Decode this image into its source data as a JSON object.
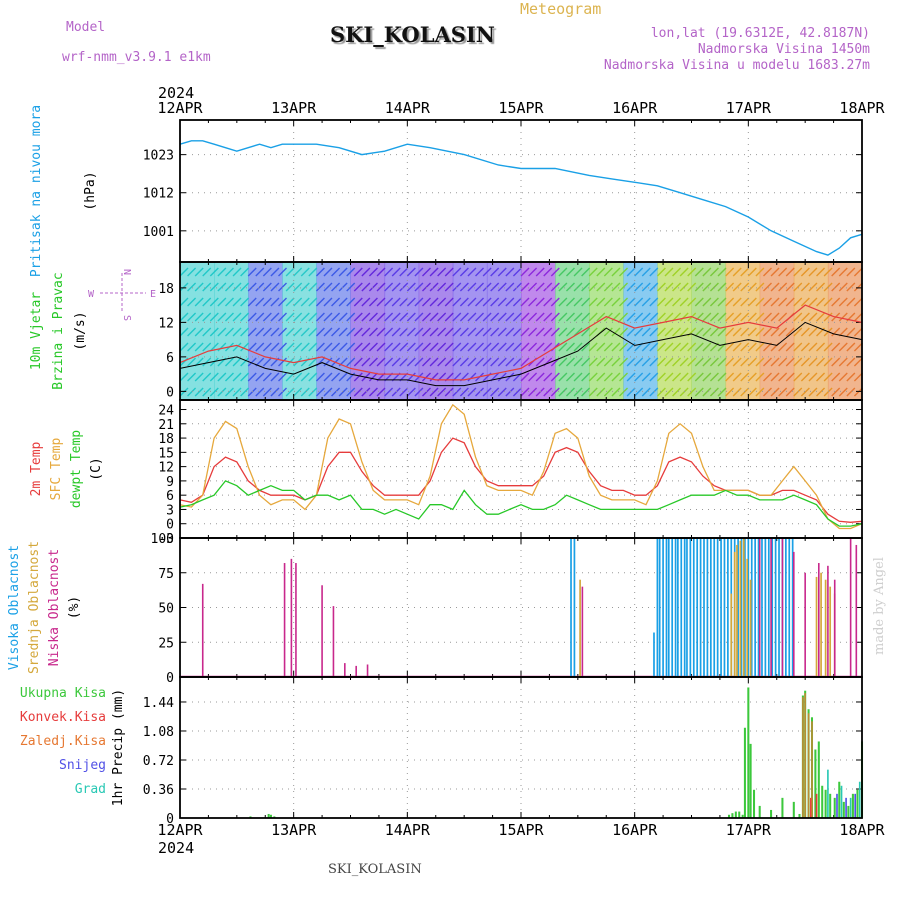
{
  "header": {
    "model_label": "Model",
    "model_name": "wrf-nmm_v3.9.1  e1km",
    "meteogram_label": "Meteogram",
    "station": "SKI_KOLASIN",
    "coords": "lon,lat (19.6312E, 42.8187N)",
    "altitude": "Nadmorska Visina 1450m",
    "model_altitude": "Nadmorska Visina u modelu 1683.27m",
    "footer_station": "SKI_KOLASIN",
    "credit": "made by Angel"
  },
  "colors": {
    "pressure": "#1aa0e6",
    "temp2m": "#e63c3c",
    "sfc": "#e6a83c",
    "dewpt": "#28c828",
    "high_cloud": "#1aa0e6",
    "mid_cloud": "#d4a83c",
    "low_cloud": "#c8288c",
    "precip_total": "#3cc83c",
    "precip_conv": "#e63c3c",
    "precip_strat": "#e67832",
    "snow": "#5050e6",
    "hail": "#28c8b4",
    "header_purple": "#b464c8",
    "header_gold": "#dcb450"
  },
  "chart_data": [
    {
      "panel": "pressure",
      "type": "line",
      "ylabel_lines": [
        "Pritisak na nivou mora",
        "(hPa)"
      ],
      "x_ticks": [
        "12APR",
        "13APR",
        "14APR",
        "15APR",
        "16APR",
        "17APR",
        "18APR"
      ],
      "x_year": "2024",
      "y_ticks": [
        1001,
        1012,
        1023
      ],
      "ylim": [
        992,
        1033
      ],
      "x": [
        0,
        0.1,
        0.2,
        0.3,
        0.4,
        0.5,
        0.6,
        0.7,
        0.8,
        0.9,
        1.0,
        1.2,
        1.4,
        1.6,
        1.8,
        2.0,
        2.2,
        2.5,
        2.8,
        3.0,
        3.3,
        3.6,
        3.8,
        4.0,
        4.2,
        4.4,
        4.6,
        4.8,
        5.0,
        5.2,
        5.4,
        5.6,
        5.7,
        5.8,
        5.9,
        6.0
      ],
      "values": [
        1026,
        1027,
        1027,
        1026,
        1025,
        1024,
        1025,
        1026,
        1025,
        1026,
        1026,
        1026,
        1025,
        1023,
        1024,
        1026,
        1025,
        1023,
        1020,
        1019,
        1019,
        1017,
        1016,
        1015,
        1014,
        1012,
        1010,
        1008,
        1005,
        1001,
        998,
        995,
        994,
        996,
        999,
        1000
      ]
    },
    {
      "panel": "wind",
      "type": "line",
      "ylabel_lines": [
        "10m Vjetar",
        "Brzina i Pravac",
        "(m/s)"
      ],
      "direction_key": [
        "N",
        "W",
        "E",
        "S"
      ],
      "y_ticks": [
        0,
        6,
        12,
        18
      ],
      "ylim": [
        -1.5,
        22.5
      ],
      "x": [
        0,
        0.25,
        0.5,
        0.75,
        1.0,
        1.25,
        1.5,
        1.75,
        2.0,
        2.25,
        2.5,
        2.75,
        3.0,
        3.25,
        3.5,
        3.75,
        4.0,
        4.25,
        4.5,
        4.75,
        5.0,
        5.25,
        5.5,
        5.75,
        6.0
      ],
      "values": [
        4,
        5,
        6,
        4,
        3,
        5,
        3,
        2,
        2,
        1,
        1,
        2,
        3,
        5,
        7,
        11,
        8,
        9,
        10,
        8,
        9,
        8,
        12,
        10,
        9
      ],
      "gust_values": [
        5,
        7,
        8,
        6,
        5,
        6,
        4,
        3,
        3,
        2,
        2,
        3,
        4,
        7,
        10,
        13,
        11,
        12,
        13,
        11,
        12,
        11,
        15,
        13,
        12
      ]
    },
    {
      "panel": "temperature",
      "type": "line",
      "ylabel_lines": [
        "2m Temp",
        "SFC Temp",
        "dewpt Temp",
        "(C)"
      ],
      "y_ticks": [
        -3,
        0,
        3,
        6,
        9,
        12,
        15,
        18,
        21,
        24
      ],
      "ylim": [
        -3,
        26
      ],
      "x": [
        0,
        0.1,
        0.2,
        0.3,
        0.4,
        0.5,
        0.6,
        0.7,
        0.8,
        0.9,
        1.0,
        1.1,
        1.2,
        1.3,
        1.4,
        1.5,
        1.6,
        1.7,
        1.8,
        1.9,
        2.0,
        2.1,
        2.2,
        2.3,
        2.4,
        2.5,
        2.6,
        2.7,
        2.8,
        2.9,
        3.0,
        3.1,
        3.2,
        3.3,
        3.4,
        3.5,
        3.6,
        3.7,
        3.8,
        3.9,
        4.0,
        4.1,
        4.2,
        4.3,
        4.4,
        4.5,
        4.6,
        4.7,
        4.8,
        4.9,
        5.0,
        5.1,
        5.2,
        5.3,
        5.4,
        5.5,
        5.6,
        5.7,
        5.8,
        5.9,
        6.0
      ],
      "series": [
        {
          "name": "2m Temp",
          "values": [
            5,
            4.5,
            6,
            12,
            14,
            13,
            9,
            7,
            6,
            6,
            6,
            5,
            6,
            12,
            15,
            15,
            11,
            8,
            6,
            6,
            6,
            6,
            9,
            15,
            18,
            17,
            12,
            9,
            8,
            8,
            8,
            8,
            10,
            15,
            16,
            15,
            11,
            8,
            7,
            7,
            6,
            6,
            8,
            13,
            14,
            13,
            10,
            8,
            7,
            7,
            7,
            6,
            6,
            7,
            7,
            6,
            5,
            2,
            0.5,
            0.3,
            0.5
          ]
        },
        {
          "name": "SFC Temp",
          "values": [
            4,
            3.5,
            6,
            18,
            21.5,
            20,
            12,
            6,
            4,
            5,
            5,
            3,
            6,
            18,
            22,
            21,
            13,
            7,
            5,
            5,
            5,
            4,
            10,
            21,
            25,
            23,
            14,
            8,
            7,
            7,
            7,
            6,
            11,
            19,
            20,
            18,
            10,
            6,
            5,
            5,
            5,
            4,
            9,
            19,
            21,
            19,
            12,
            7,
            7,
            7,
            7,
            6,
            6,
            9,
            12,
            9,
            6,
            1,
            -1,
            -1,
            0
          ]
        },
        {
          "name": "dewpt Temp",
          "values": [
            3.5,
            4,
            5,
            6,
            9,
            8,
            6,
            7,
            8,
            7,
            7,
            5,
            6,
            6,
            5,
            6,
            3,
            3,
            2,
            3,
            2,
            1,
            4,
            4,
            3,
            7,
            4,
            2,
            2,
            3,
            4,
            3,
            3,
            4,
            6,
            5,
            4,
            3,
            3,
            3,
            3,
            3,
            3,
            4,
            5,
            6,
            6,
            6,
            7,
            6,
            6,
            5,
            5,
            5,
            6,
            5,
            4,
            1,
            -0.5,
            -0.5,
            0
          ]
        }
      ]
    },
    {
      "panel": "clouds",
      "type": "bar",
      "ylabel_lines": [
        "Visoka Oblacnost",
        "Srednja Oblacnost",
        "Niska Oblacnost",
        "(%)"
      ],
      "y_ticks": [
        0,
        25,
        50,
        75,
        100
      ],
      "ylim": [
        0,
        100
      ],
      "bar_width_days": 0.015,
      "series": [
        {
          "name": "Visoka Oblacnost",
          "x": [
            3.44,
            3.47,
            4.17,
            4.2,
            4.22,
            4.25,
            4.28,
            4.3,
            4.33,
            4.36,
            4.38,
            4.41,
            4.44,
            4.46,
            4.49,
            4.52,
            4.55,
            4.58,
            4.61,
            4.64,
            4.67,
            4.7,
            4.73,
            4.76,
            4.79,
            4.82,
            4.85,
            4.88,
            4.91,
            4.94,
            4.97,
            5.0,
            5.03,
            5.06,
            5.09,
            5.12,
            5.15,
            5.18,
            5.21,
            5.24,
            5.27,
            5.3,
            5.33,
            5.36,
            5.39
          ],
          "values": [
            100,
            100,
            32,
            100,
            100,
            100,
            100,
            100,
            100,
            100,
            100,
            100,
            100,
            100,
            100,
            100,
            100,
            100,
            100,
            100,
            100,
            100,
            100,
            100,
            100,
            100,
            100,
            100,
            100,
            100,
            100,
            100,
            100,
            100,
            100,
            100,
            100,
            100,
            100,
            100,
            100,
            100,
            100,
            100,
            100
          ]
        },
        {
          "name": "Srednja Oblacnost",
          "x": [
            3.52,
            4.85,
            4.88,
            4.9,
            4.93,
            4.96,
            4.99,
            5.02,
            5.6,
            5.64,
            5.68,
            5.72,
            5.76
          ],
          "values": [
            70,
            60,
            90,
            95,
            98,
            100,
            85,
            70,
            72,
            75,
            70,
            65,
            60
          ]
        },
        {
          "name": "Niska Oblacnost",
          "x": [
            0.2,
            0.92,
            0.98,
            1.02,
            1.25,
            1.35,
            1.45,
            1.55,
            1.65,
            3.54,
            5.1,
            5.2,
            5.3,
            5.4,
            5.5,
            5.62,
            5.7,
            5.76,
            5.9,
            5.95
          ],
          "values": [
            67,
            82,
            85,
            82,
            66,
            51,
            10,
            8,
            9,
            65,
            100,
            100,
            100,
            90,
            75,
            82,
            80,
            70,
            100,
            95
          ]
        }
      ]
    },
    {
      "panel": "precip",
      "type": "bar",
      "ylabel_lines": [
        "1hr Precip (mm)"
      ],
      "legend": [
        "Ukupna Kisa",
        "Konvek.Kisa",
        "Zaledj.Kisa",
        "Snijeg",
        "Grad"
      ],
      "y_ticks": [
        0,
        0.36,
        0.72,
        1.08,
        1.44
      ],
      "ylim": [
        0,
        1.75
      ],
      "bar_width_days": 0.018,
      "series": [
        {
          "name": "Ukupna Kisa",
          "x": [
            0.62,
            0.78,
            0.8,
            0.83,
            4.83,
            4.86,
            4.89,
            4.92,
            4.95,
            4.97,
            5.0,
            5.02,
            5.05,
            5.1,
            5.2,
            5.3,
            5.4,
            5.45,
            5.48,
            5.5,
            5.53,
            5.56,
            5.59,
            5.62,
            5.65,
            5.68,
            5.72,
            5.76,
            5.8,
            5.84,
            5.88,
            5.92,
            5.96,
            6.0
          ],
          "values": [
            0.02,
            0.05,
            0.04,
            0.02,
            0.04,
            0.06,
            0.08,
            0.08,
            0.04,
            1.12,
            1.62,
            0.92,
            0.35,
            0.15,
            0.1,
            0.25,
            0.2,
            0.05,
            1.52,
            1.58,
            1.35,
            1.25,
            0.85,
            0.95,
            0.4,
            0.35,
            0.3,
            0.25,
            0.45,
            0.2,
            0.15,
            0.3,
            0.35,
            0.95
          ]
        },
        {
          "name": "Konvek.Kisa",
          "x": [
            5.55,
            5.6
          ],
          "values": [
            0.25,
            0.3
          ]
        },
        {
          "name": "Zaledj.Kisa",
          "x": [
            5.48,
            5.5,
            5.53,
            5.56
          ],
          "values": [
            1.5,
            1.55,
            1.3,
            1.2
          ]
        },
        {
          "name": "Snijeg",
          "x": [
            5.78,
            5.86,
            5.94
          ],
          "values": [
            0.3,
            0.25,
            0.3
          ]
        },
        {
          "name": "Grad",
          "x": [
            5.7,
            5.82,
            5.9,
            5.98
          ],
          "values": [
            0.6,
            0.4,
            0.25,
            0.45
          ]
        }
      ]
    }
  ]
}
